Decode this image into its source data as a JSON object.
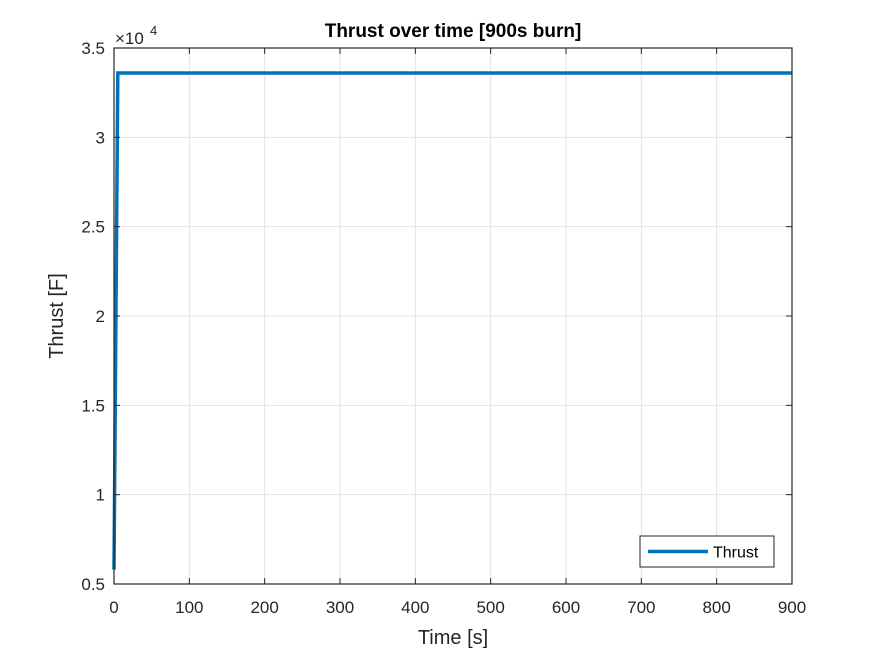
{
  "chart_data": {
    "type": "line",
    "title": "Thrust over time [900s burn]",
    "xlabel": "Time [s]",
    "ylabel": "Thrust [F]",
    "y_exponent_base": "×10",
    "y_exponent_power": "4",
    "xlim": [
      0,
      900
    ],
    "ylim": [
      0.5,
      3.5
    ],
    "xticks": [
      0,
      100,
      200,
      300,
      400,
      500,
      600,
      700,
      800,
      900
    ],
    "xtick_labels": [
      "0",
      "100",
      "200",
      "300",
      "400",
      "500",
      "600",
      "700",
      "800",
      "900"
    ],
    "yticks": [
      0.5,
      1,
      1.5,
      2,
      2.5,
      3,
      3.5
    ],
    "ytick_labels": [
      "0.5",
      "1",
      "1.5",
      "2",
      "2.5",
      "3",
      "3.5"
    ],
    "grid": true,
    "legend_position": "bottom-right",
    "series": [
      {
        "name": "Thrust",
        "color": "#0072BD",
        "x": [
          0,
          5,
          900
        ],
        "y": [
          0.58,
          3.36,
          3.36
        ]
      }
    ]
  }
}
